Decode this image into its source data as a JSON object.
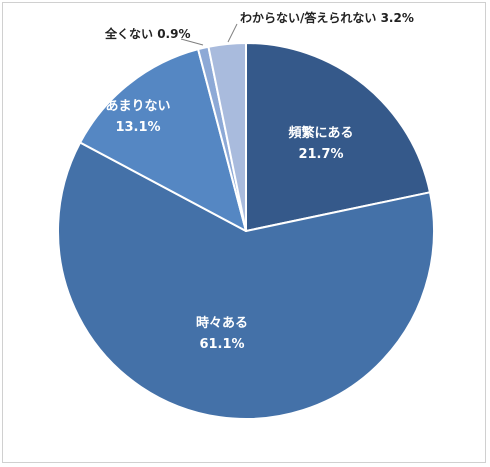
{
  "chart_data": {
    "type": "pie",
    "title": "",
    "start_angle_deg": 0,
    "direction": "clockwise",
    "slices": [
      {
        "label": "頻繁にある",
        "value": 21.7,
        "value_label": "21.7%",
        "color": "#35598a",
        "label_pos": "inside"
      },
      {
        "label": "時々ある",
        "value": 61.1,
        "value_label": "61.1%",
        "color": "#4471a8",
        "label_pos": "inside"
      },
      {
        "label": "あまりない",
        "value": 13.1,
        "value_label": "13.1%",
        "color": "#5587c3",
        "label_pos": "inside"
      },
      {
        "label": "全くない",
        "value": 0.9,
        "value_label": "0.9%",
        "color": "#8da9d6",
        "label_pos": "outside"
      },
      {
        "label": "わからない/答えられない",
        "value": 3.2,
        "value_label": "3.2%",
        "color": "#a9bbdd",
        "label_pos": "outside"
      }
    ]
  }
}
